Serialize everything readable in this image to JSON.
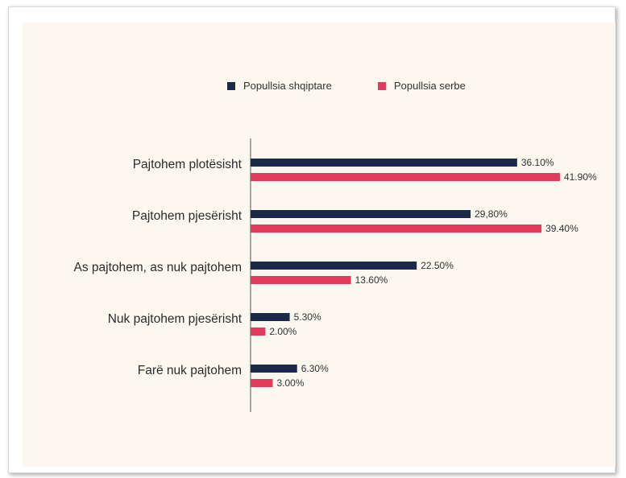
{
  "chart_data": {
    "type": "bar",
    "orientation": "horizontal",
    "title": "",
    "xlabel": "",
    "ylabel": "",
    "categories": [
      "Pajtohem plotësisht",
      "Pajtohem pjesërisht",
      "As pajtohem, as nuk pajtohem",
      "Nuk pajtohem pjesërisht",
      "Farë nuk pajtohem"
    ],
    "series": [
      {
        "name": "Popullsia shqiptare",
        "color": "#1b2a48",
        "values": [
          36.1,
          29.8,
          22.5,
          5.3,
          6.3
        ],
        "labels": [
          "36.10%",
          "29,80%",
          "22.50%",
          "5.30%",
          "6.30%"
        ]
      },
      {
        "name": "Popullsia serbe",
        "color": "#e33b5b",
        "values": [
          41.9,
          39.4,
          13.6,
          2.0,
          3.0
        ],
        "labels": [
          "41.90%",
          "39.40%",
          "13.60%",
          "2.00%",
          "3.00%"
        ]
      }
    ],
    "xlim": [
      0,
      45
    ],
    "grid": false,
    "legend_position": "top"
  }
}
